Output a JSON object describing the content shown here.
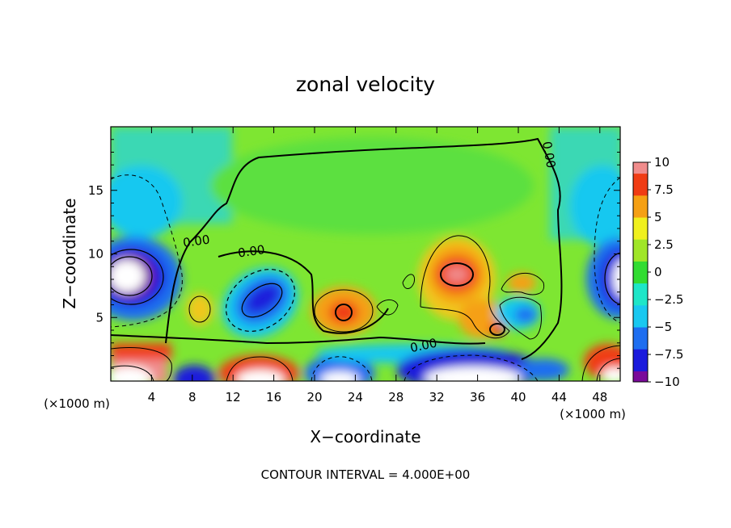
{
  "chart_data": {
    "type": "heatmap",
    "title": "zonal velocity",
    "xlabel": "X−coordinate",
    "ylabel": "Z−coordinate",
    "x_unit_left": "(×1000 m)",
    "x_unit_right": "(×1000 m)",
    "xlim": [
      0,
      50
    ],
    "ylim": [
      0,
      20
    ],
    "x_ticks": [
      4,
      8,
      12,
      16,
      20,
      24,
      28,
      32,
      36,
      40,
      44,
      48
    ],
    "y_ticks": [
      5,
      10,
      15
    ],
    "colorbar": {
      "ticks": [
        "10",
        "7.5",
        "5",
        "2.5",
        "0",
        "−2.5",
        "−5",
        "−7.5",
        "−10"
      ],
      "range": [
        -10,
        10
      ]
    },
    "contour_labels": [
      {
        "text": "0.00",
        "x": 8.4,
        "z": 11.0
      },
      {
        "text": "0.00",
        "x": 13.8,
        "z": 10.2
      },
      {
        "text": "0.00",
        "x": 30.7,
        "z": 2.8
      },
      {
        "text": "0.00",
        "x": 43.0,
        "z": 17.8
      }
    ],
    "footer": "CONTOUR INTERVAL = 4.000E+00"
  },
  "colors": {
    "scale": [
      "#7a0a9a",
      "#1a1adc",
      "#1e6ef0",
      "#19c8f0",
      "#1ee6c8",
      "#32dc32",
      "#a0e628",
      "#f0f01e",
      "#f5a014",
      "#f03c14",
      "#f08c8c"
    ]
  }
}
